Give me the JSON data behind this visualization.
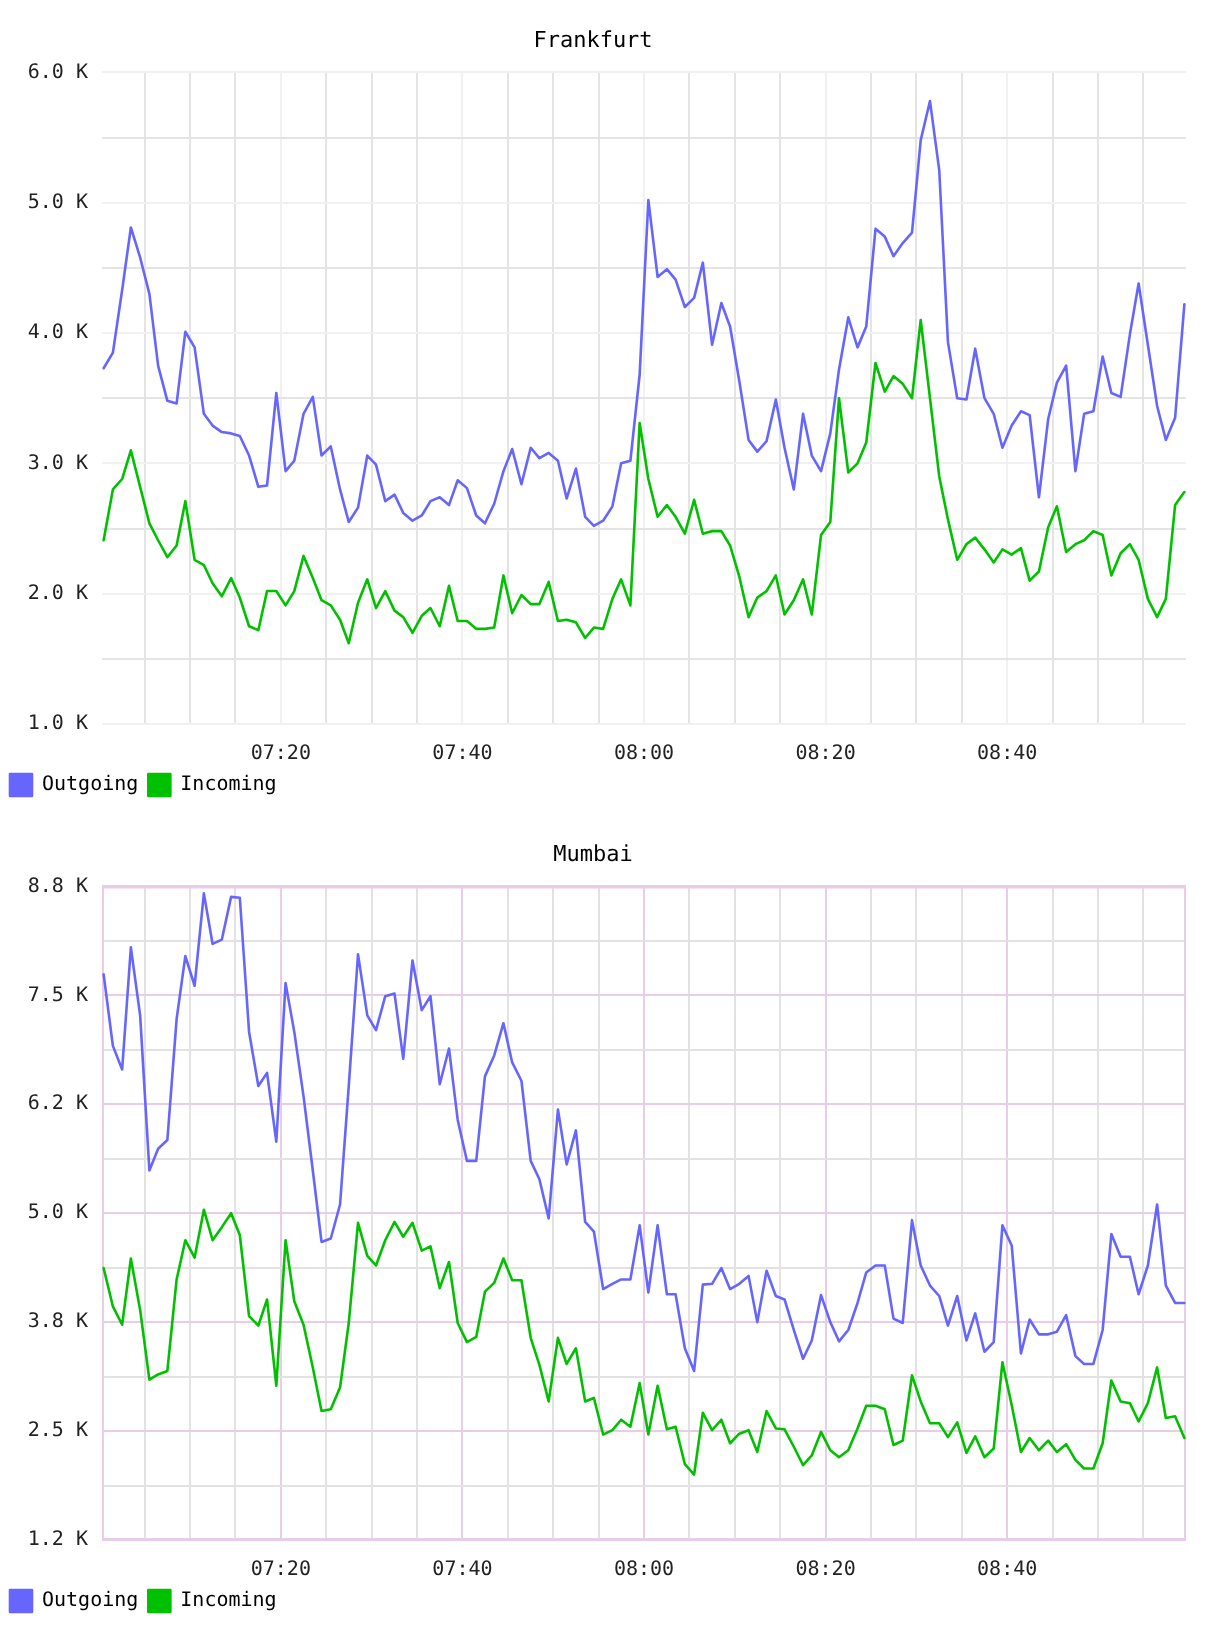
{
  "chart_data": [
    {
      "type": "line",
      "title": "Frankfurt",
      "x": [
        7.008,
        7.025,
        7.042,
        7.058,
        7.075,
        7.092,
        7.108,
        7.125,
        7.142,
        7.158,
        7.175,
        7.192,
        7.208,
        7.225,
        7.242,
        7.258,
        7.275,
        7.292,
        7.308,
        7.325,
        7.342,
        7.358,
        7.375,
        7.392,
        7.408,
        7.425,
        7.442,
        7.458,
        7.475,
        7.492,
        7.508,
        7.525,
        7.542,
        7.558,
        7.575,
        7.592,
        7.608,
        7.625,
        7.642,
        7.658,
        7.675,
        7.692,
        7.708,
        7.725,
        7.742,
        7.758,
        7.775,
        7.792,
        7.808,
        7.825,
        7.842,
        7.858,
        7.875,
        7.892,
        7.908,
        7.925,
        7.942,
        7.958,
        7.975,
        7.992,
        8.008,
        8.025,
        8.042,
        8.058,
        8.075,
        8.092,
        8.108,
        8.125,
        8.142,
        8.158,
        8.175,
        8.192,
        8.208,
        8.225,
        8.242,
        8.258,
        8.275,
        8.292,
        8.308,
        8.325,
        8.342,
        8.358,
        8.375,
        8.392,
        8.408,
        8.425,
        8.442,
        8.458,
        8.475,
        8.492,
        8.508,
        8.525,
        8.542,
        8.558,
        8.575,
        8.592,
        8.608,
        8.625,
        8.642,
        8.658,
        8.675,
        8.692,
        8.708,
        8.725,
        8.742,
        8.758,
        8.775,
        8.792,
        8.808,
        8.825,
        8.842,
        8.858,
        8.875,
        8.892,
        8.908,
        8.925,
        8.942,
        8.958,
        8.975,
        8.992
      ],
      "series": [
        {
          "name": "Outgoing",
          "color": "#6666ff",
          "values": [
            3730,
            3850,
            4330,
            4810,
            4580,
            4300,
            3750,
            3480,
            3460,
            4010,
            3890,
            3380,
            3290,
            3240,
            3230,
            3210,
            3060,
            2820,
            2830,
            3540,
            2940,
            3020,
            3380,
            3510,
            3060,
            3130,
            2800,
            2550,
            2660,
            3060,
            2990,
            2710,
            2760,
            2620,
            2560,
            2600,
            2710,
            2740,
            2680,
            2870,
            2810,
            2600,
            2540,
            2690,
            2940,
            3110,
            2840,
            3120,
            3040,
            3080,
            3020,
            2730,
            2960,
            2590,
            2520,
            2560,
            2670,
            3000,
            3020,
            3680,
            5020,
            4430,
            4490,
            4410,
            4200,
            4270,
            4540,
            3910,
            4230,
            4050,
            3630,
            3180,
            3090,
            3170,
            3490,
            3120,
            2800,
            3380,
            3060,
            2940,
            3230,
            3720,
            4120,
            3890,
            4050,
            4800,
            4740,
            4590,
            4690,
            4770,
            5480,
            5780,
            5250,
            3930,
            3500,
            3490,
            3880,
            3500,
            3380,
            3120,
            3290,
            3400,
            3370,
            2740,
            3340,
            3620,
            3750,
            2940,
            3380,
            3400,
            3820,
            3540,
            3510,
            3990,
            4380,
            3910,
            3440,
            3180,
            3350,
            4220
          ]
        },
        {
          "name": "Incoming",
          "color": "#00c000",
          "values": [
            2410,
            2800,
            2880,
            3100,
            2820,
            2540,
            2410,
            2280,
            2370,
            2710,
            2260,
            2220,
            2080,
            1980,
            2120,
            1970,
            1750,
            1720,
            2020,
            2020,
            1910,
            2020,
            2290,
            2120,
            1950,
            1910,
            1800,
            1620,
            1930,
            2110,
            1890,
            2020,
            1870,
            1820,
            1700,
            1830,
            1890,
            1750,
            2060,
            1790,
            1790,
            1730,
            1730,
            1740,
            2140,
            1850,
            1990,
            1920,
            1920,
            2090,
            1790,
            1800,
            1780,
            1660,
            1740,
            1730,
            1960,
            2110,
            1910,
            3310,
            2880,
            2590,
            2680,
            2590,
            2460,
            2720,
            2460,
            2480,
            2480,
            2370,
            2130,
            1820,
            1970,
            2020,
            2140,
            1840,
            1950,
            2110,
            1840,
            2450,
            2550,
            3500,
            2930,
            3000,
            3160,
            3770,
            3550,
            3670,
            3610,
            3500,
            4100,
            3500,
            2900,
            2570,
            2260,
            2380,
            2430,
            2340,
            2240,
            2340,
            2300,
            2350,
            2100,
            2170,
            2510,
            2670,
            2320,
            2380,
            2410,
            2480,
            2450,
            2140,
            2310,
            2380,
            2260,
            1960,
            1820,
            1960,
            2680,
            2780
          ]
        }
      ],
      "xlim": [
        7.005,
        8.995
      ],
      "xticks": [
        {
          "value": 7.0833,
          "label": null
        },
        {
          "value": 7.1667,
          "label": null
        },
        {
          "value": 7.25,
          "label": null
        },
        {
          "value": 7.3333,
          "label": "07:20"
        },
        {
          "value": 7.4167,
          "label": null
        },
        {
          "value": 7.5,
          "label": null
        },
        {
          "value": 7.5833,
          "label": null
        },
        {
          "value": 7.6667,
          "label": "07:40"
        },
        {
          "value": 7.75,
          "label": null
        },
        {
          "value": 7.8333,
          "label": null
        },
        {
          "value": 7.9167,
          "label": null
        },
        {
          "value": 8,
          "label": "08:00"
        },
        {
          "value": 8.0833,
          "label": null
        },
        {
          "value": 8.1667,
          "label": null
        },
        {
          "value": 8.25,
          "label": null
        },
        {
          "value": 8.3333,
          "label": "08:20"
        },
        {
          "value": 8.4167,
          "label": null
        },
        {
          "value": 8.5,
          "label": null
        },
        {
          "value": 8.5833,
          "label": null
        },
        {
          "value": 8.6667,
          "label": "08:40"
        },
        {
          "value": 8.75,
          "label": null
        },
        {
          "value": 8.8333,
          "label": null
        },
        {
          "value": 8.9167,
          "label": null
        }
      ],
      "ylim": [
        1000,
        6000
      ],
      "yticks": [
        {
          "value": 1000,
          "label": "1.0 K"
        },
        {
          "value": 1500,
          "label": null
        },
        {
          "value": 2000,
          "label": "2.0 K"
        },
        {
          "value": 2500,
          "label": null
        },
        {
          "value": 3000,
          "label": "3.0 K"
        },
        {
          "value": 3500,
          "label": null
        },
        {
          "value": 4000,
          "label": "4.0 K"
        },
        {
          "value": 4500,
          "label": null
        },
        {
          "value": 5000,
          "label": "5.0 K"
        },
        {
          "value": 5500,
          "label": null
        },
        {
          "value": 6000,
          "label": "6.0 K"
        }
      ],
      "grid": true,
      "legend": "bottom left",
      "marker": "none"
    },
    {
      "type": "line",
      "title": "Mumbai",
      "x": [
        7.008,
        7.025,
        7.042,
        7.058,
        7.075,
        7.092,
        7.108,
        7.125,
        7.142,
        7.158,
        7.175,
        7.192,
        7.208,
        7.225,
        7.242,
        7.258,
        7.275,
        7.292,
        7.308,
        7.325,
        7.342,
        7.358,
        7.375,
        7.392,
        7.408,
        7.425,
        7.442,
        7.458,
        7.475,
        7.492,
        7.508,
        7.525,
        7.542,
        7.558,
        7.575,
        7.592,
        7.608,
        7.625,
        7.642,
        7.658,
        7.675,
        7.692,
        7.708,
        7.725,
        7.742,
        7.758,
        7.775,
        7.792,
        7.808,
        7.825,
        7.842,
        7.858,
        7.875,
        7.892,
        7.908,
        7.925,
        7.942,
        7.958,
        7.975,
        7.992,
        8.008,
        8.025,
        8.042,
        8.058,
        8.075,
        8.092,
        8.108,
        8.125,
        8.142,
        8.158,
        8.175,
        8.192,
        8.208,
        8.225,
        8.242,
        8.258,
        8.275,
        8.292,
        8.308,
        8.325,
        8.342,
        8.358,
        8.375,
        8.392,
        8.408,
        8.425,
        8.442,
        8.458,
        8.475,
        8.492,
        8.508,
        8.525,
        8.542,
        8.558,
        8.575,
        8.592,
        8.608,
        8.625,
        8.642,
        8.658,
        8.675,
        8.692,
        8.708,
        8.725,
        8.742,
        8.758,
        8.775,
        8.792,
        8.808,
        8.825,
        8.842,
        8.858,
        8.875,
        8.892,
        8.908,
        8.925,
        8.942,
        8.958,
        8.975,
        8.992
      ],
      "series": [
        {
          "name": "Outgoing",
          "color": "#6666ff",
          "values": [
            7740,
            6920,
            6650,
            8050,
            7270,
            5490,
            5740,
            5840,
            7230,
            7950,
            7610,
            8670,
            8090,
            8140,
            8630,
            8620,
            7080,
            6460,
            6610,
            5820,
            7640,
            7080,
            6340,
            5490,
            4670,
            4710,
            5100,
            6460,
            7970,
            7270,
            7100,
            7490,
            7520,
            6770,
            7900,
            7330,
            7490,
            6480,
            6890,
            6070,
            5600,
            5600,
            6570,
            6810,
            7180,
            6730,
            6520,
            5600,
            5390,
            4940,
            6190,
            5560,
            5950,
            4900,
            4790,
            4130,
            4190,
            4240,
            4240,
            4860,
            4090,
            4860,
            4070,
            4070,
            3450,
            3190,
            4180,
            4190,
            4370,
            4130,
            4190,
            4280,
            3750,
            4340,
            4050,
            4010,
            3660,
            3330,
            3540,
            4060,
            3750,
            3530,
            3660,
            3970,
            4320,
            4400,
            4400,
            3790,
            3740,
            4920,
            4400,
            4170,
            4050,
            3710,
            4050,
            3540,
            3850,
            3410,
            3520,
            4860,
            4630,
            3390,
            3780,
            3610,
            3610,
            3640,
            3830,
            3360,
            3270,
            3270,
            3660,
            4760,
            4500,
            4500,
            4070,
            4400,
            5100,
            4170,
            3970,
            3970
          ]
        },
        {
          "name": "Incoming",
          "color": "#00c000",
          "values": [
            4370,
            3930,
            3720,
            4480,
            3890,
            3090,
            3150,
            3190,
            4240,
            4690,
            4490,
            5040,
            4690,
            4840,
            5000,
            4750,
            3820,
            3710,
            4010,
            3020,
            4690,
            3990,
            3720,
            3230,
            2730,
            2750,
            3000,
            3740,
            4890,
            4510,
            4400,
            4690,
            4900,
            4730,
            4890,
            4570,
            4620,
            4140,
            4440,
            3740,
            3520,
            3580,
            4100,
            4200,
            4480,
            4230,
            4230,
            3570,
            3260,
            2840,
            3570,
            3270,
            3450,
            2840,
            2880,
            2460,
            2510,
            2630,
            2550,
            3050,
            2460,
            3020,
            2520,
            2550,
            2120,
            2000,
            2710,
            2510,
            2630,
            2360,
            2470,
            2510,
            2260,
            2730,
            2530,
            2520,
            2320,
            2110,
            2220,
            2490,
            2280,
            2200,
            2280,
            2530,
            2790,
            2790,
            2750,
            2340,
            2390,
            3140,
            2840,
            2590,
            2590,
            2430,
            2600,
            2250,
            2440,
            2200,
            2300,
            3290,
            2800,
            2260,
            2420,
            2280,
            2390,
            2260,
            2350,
            2170,
            2070,
            2070,
            2360,
            3080,
            2840,
            2820,
            2610,
            2820,
            3230,
            2650,
            2670,
            2420
          ]
        }
      ],
      "xlim": [
        7.005,
        8.995
      ],
      "xticks": [
        {
          "value": 7.0833,
          "label": null
        },
        {
          "value": 7.1667,
          "label": null
        },
        {
          "value": 7.25,
          "label": null
        },
        {
          "value": 7.3333,
          "label": "07:20"
        },
        {
          "value": 7.4167,
          "label": null
        },
        {
          "value": 7.5,
          "label": null
        },
        {
          "value": 7.5833,
          "label": null
        },
        {
          "value": 7.6667,
          "label": "07:40"
        },
        {
          "value": 7.75,
          "label": null
        },
        {
          "value": 7.8333,
          "label": null
        },
        {
          "value": 7.9167,
          "label": null
        },
        {
          "value": 8,
          "label": "08:00"
        },
        {
          "value": 8.0833,
          "label": null
        },
        {
          "value": 8.1667,
          "label": null
        },
        {
          "value": 8.25,
          "label": null
        },
        {
          "value": 8.3333,
          "label": "08:20"
        },
        {
          "value": 8.4167,
          "label": null
        },
        {
          "value": 8.5,
          "label": null
        },
        {
          "value": 8.5833,
          "label": null
        },
        {
          "value": 8.6667,
          "label": "08:40"
        },
        {
          "value": 8.75,
          "label": null
        },
        {
          "value": 8.8333,
          "label": null
        },
        {
          "value": 8.9167,
          "label": null
        }
      ],
      "ylim": [
        1250,
        8750
      ],
      "yticks": [
        {
          "value": 1250,
          "label": "1.2 K"
        },
        {
          "value": 1875,
          "label": null
        },
        {
          "value": 2500,
          "label": "2.5 K"
        },
        {
          "value": 3125,
          "label": null
        },
        {
          "value": 3750,
          "label": "3.8 K"
        },
        {
          "value": 4375,
          "label": null
        },
        {
          "value": 5000,
          "label": "5.0 K"
        },
        {
          "value": 5625,
          "label": null
        },
        {
          "value": 6250,
          "label": "6.2 K"
        },
        {
          "value": 6875,
          "label": null
        },
        {
          "value": 7500,
          "label": "7.5 K"
        },
        {
          "value": 8125,
          "label": null
        },
        {
          "value": 8750,
          "label": "8.8 K"
        }
      ],
      "grid": true,
      "legend": "bottom left",
      "marker": "none"
    }
  ]
}
